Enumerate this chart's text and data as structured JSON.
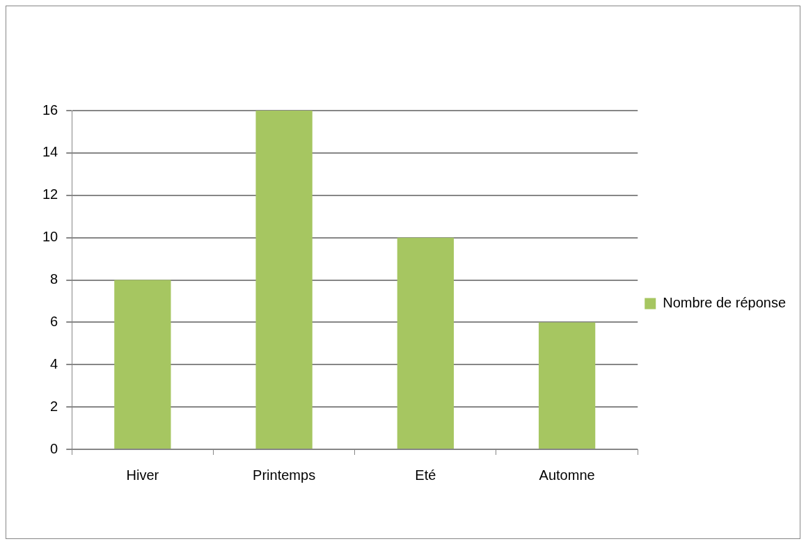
{
  "chart_data": {
    "type": "bar",
    "categories": [
      "Hiver",
      "Printemps",
      "Eté",
      "Automne"
    ],
    "series": [
      {
        "name": "Nombre de réponse",
        "color": "#a6c661",
        "values": [
          8,
          16,
          10,
          6
        ]
      }
    ],
    "ylim": [
      0,
      16
    ],
    "yticks": [
      0,
      2,
      4,
      6,
      8,
      10,
      12,
      14,
      16
    ],
    "grid": "y",
    "legend": "right"
  }
}
